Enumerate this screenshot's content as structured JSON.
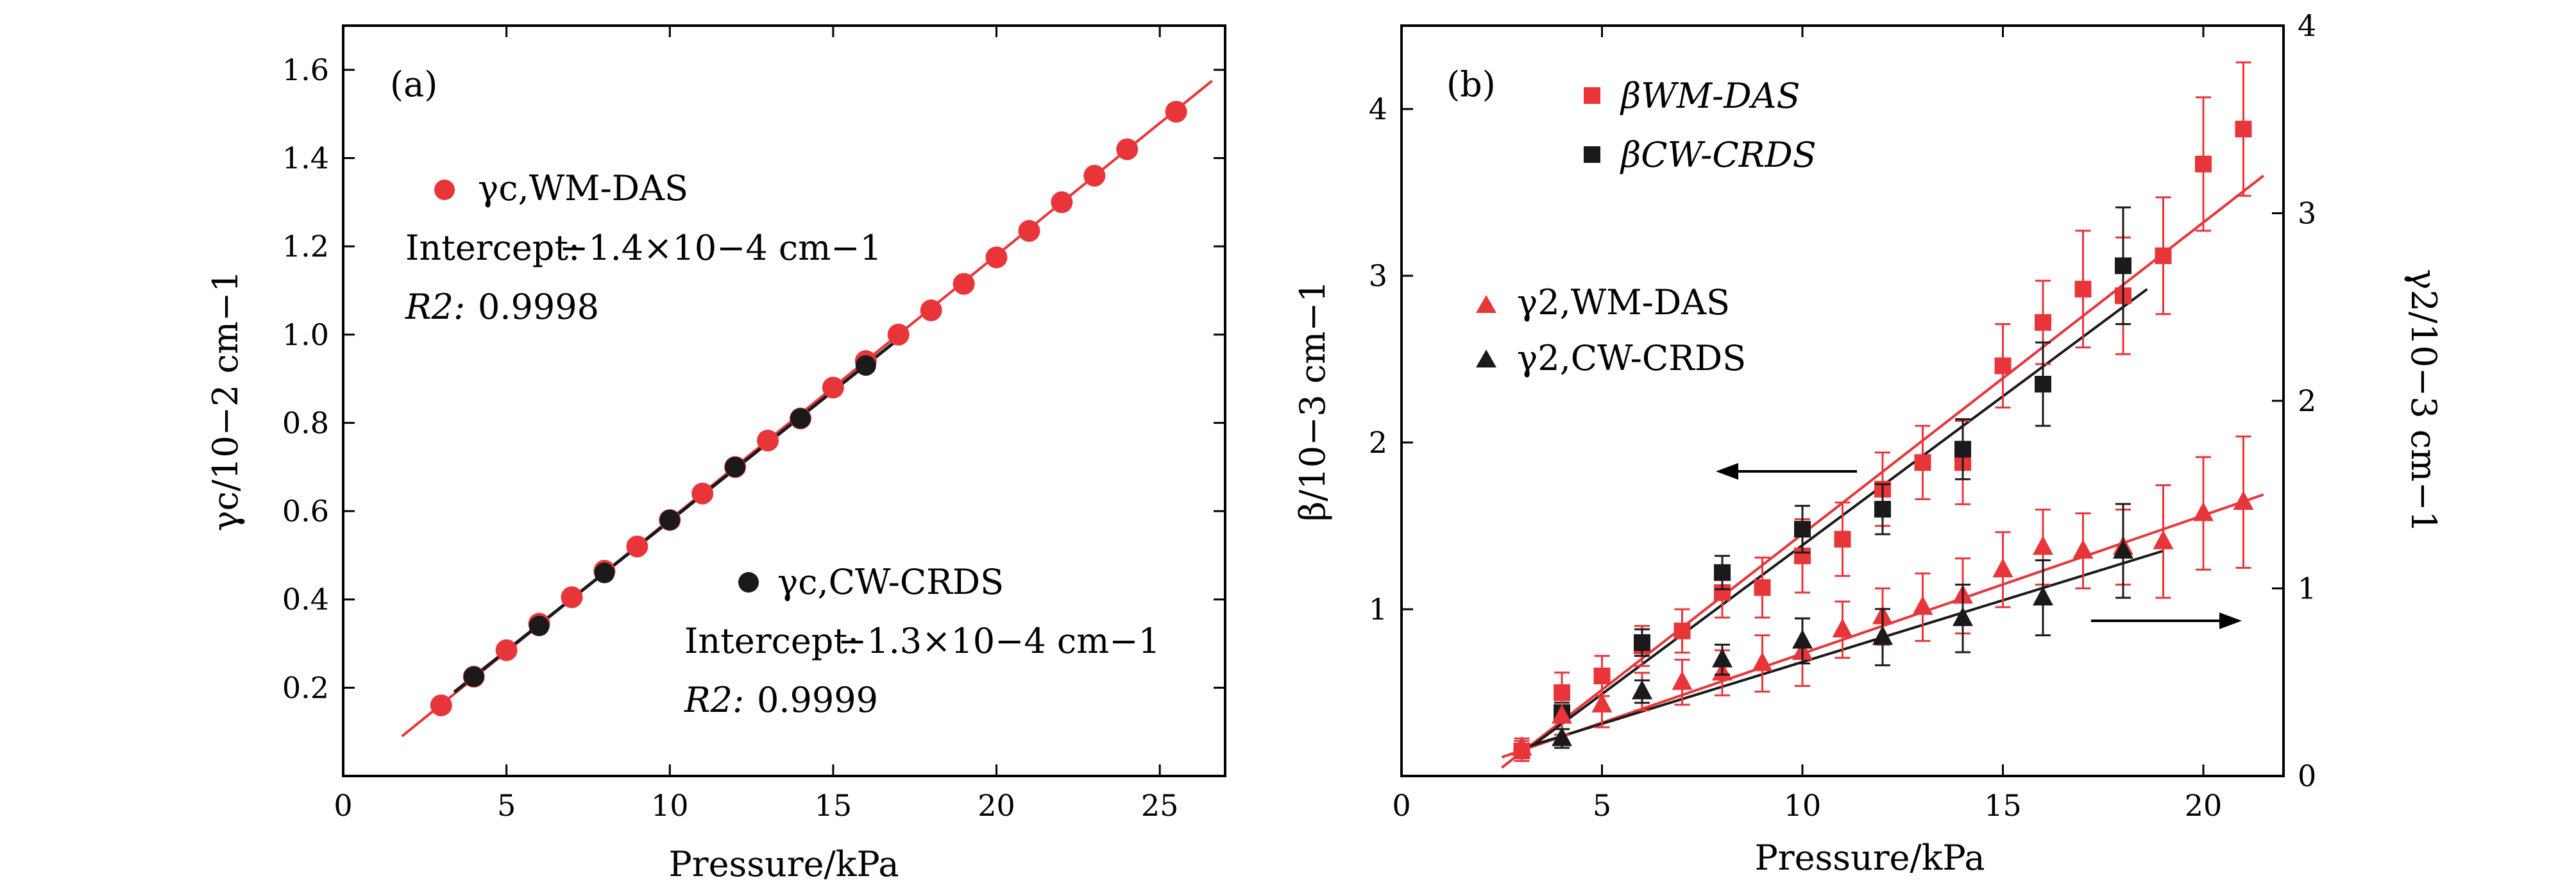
{
  "chart_data": [
    {
      "type": "scatter",
      "panel_label": "(a)",
      "xlabel": "Pressure/kPa",
      "ylabel": "γc/10−2 cm−1",
      "xlim": [
        0,
        27
      ],
      "ylim": [
        0,
        1.7
      ],
      "x_ticks": [
        "0",
        "5",
        "10",
        "15",
        "20",
        "25"
      ],
      "y_ticks": [
        "0.2",
        "0.4",
        "0.6",
        "0.8",
        "1.0",
        "1.2",
        "1.4",
        "1.6"
      ],
      "series": [
        {
          "name": "γc,WM-DAS",
          "color": "#e8353a",
          "x": [
            3,
            4,
            5,
            6,
            7,
            8,
            9,
            10,
            11,
            12,
            13,
            14,
            15,
            16,
            17,
            18,
            19,
            20,
            21,
            22,
            23,
            24,
            25.5
          ],
          "y": [
            0.16,
            0.225,
            0.285,
            0.345,
            0.405,
            0.465,
            0.52,
            0.58,
            0.64,
            0.7,
            0.76,
            0.81,
            0.88,
            0.94,
            1.0,
            1.055,
            1.115,
            1.175,
            1.235,
            1.3,
            1.36,
            1.42,
            1.505
          ],
          "fit": {
            "x": [
              1.8,
              26.6
            ],
            "y": [
              0.09,
              1.575
            ]
          }
        },
        {
          "name": "γc,CW-CRDS",
          "color": "#1a1a1a",
          "x": [
            4,
            6,
            8,
            10,
            12,
            14,
            16
          ],
          "y": [
            0.225,
            0.34,
            0.46,
            0.58,
            0.7,
            0.81,
            0.93
          ],
          "fit": {
            "x": [
              3.4,
              17
            ],
            "y": [
              0.19,
              0.99
            ]
          }
        }
      ],
      "annotations": [
        {
          "intercept_label": "Intercept:",
          "intercept_value": "−1.4×10−4 cm−1",
          "r2_label": "R2:",
          "r2_value": "0.9998"
        },
        {
          "intercept_label": "Intercept:",
          "intercept_value": "−1.3×10−4 cm−1",
          "r2_label": "R2:",
          "r2_value": "0.9999"
        }
      ]
    },
    {
      "type": "scatter",
      "panel_label": "(b)",
      "xlabel": "Pressure/kPa",
      "ylabel_left": "β/10−3 cm−1",
      "ylabel_right": "γ2/10−3 cm−1",
      "xlim": [
        0,
        22
      ],
      "ylim_left": [
        0,
        4.5
      ],
      "ylim_right": [
        0,
        4
      ],
      "x_ticks": [
        "0",
        "5",
        "10",
        "15",
        "20"
      ],
      "y_ticks_left": [
        "1",
        "2",
        "3",
        "4"
      ],
      "y_ticks_right": [
        "0",
        "1",
        "2",
        "3",
        "4"
      ],
      "series": [
        {
          "name": "βWM-DAS",
          "marker": "square",
          "axis": "left",
          "color": "#e8353a",
          "x": [
            3,
            4,
            5,
            6,
            7,
            8,
            9,
            10,
            11,
            12,
            13,
            14,
            15,
            16,
            17,
            18,
            19,
            20,
            21
          ],
          "y": [
            0.15,
            0.5,
            0.6,
            0.78,
            0.87,
            1.1,
            1.13,
            1.32,
            1.42,
            1.72,
            1.88,
            1.88,
            2.46,
            2.72,
            2.92,
            2.88,
            3.12,
            3.67,
            3.88
          ],
          "err": [
            0.06,
            0.12,
            0.12,
            0.12,
            0.13,
            0.15,
            0.18,
            0.22,
            0.22,
            0.22,
            0.22,
            0.25,
            0.25,
            0.25,
            0.35,
            0.35,
            0.35,
            0.4,
            0.4
          ],
          "fit": {
            "x": [
              2.5,
              21.5
            ],
            "y": [
              0.05,
              3.6
            ]
          }
        },
        {
          "name": "βCW-CRDS",
          "marker": "square",
          "axis": "left",
          "color": "#1a1a1a",
          "x": [
            4,
            6,
            8,
            10,
            12,
            14,
            16,
            18
          ],
          "y": [
            0.38,
            0.8,
            1.22,
            1.48,
            1.6,
            1.96,
            2.35,
            3.06
          ],
          "err": [
            0.06,
            0.08,
            0.1,
            0.14,
            0.15,
            0.18,
            0.25,
            0.35
          ],
          "fit": {
            "x": [
              3.2,
              18.6
            ],
            "y": [
              0.17,
              2.92
            ]
          }
        },
        {
          "name": "γ2,WM-DAS",
          "marker": "triangle",
          "axis": "right",
          "color": "#e8353a",
          "x": [
            3,
            4,
            5,
            6,
            7,
            8,
            9,
            10,
            11,
            12,
            13,
            14,
            15,
            16,
            17,
            18,
            19,
            20,
            21
          ],
          "y": [
            0.15,
            0.32,
            0.38,
            0.45,
            0.5,
            0.55,
            0.6,
            0.66,
            0.78,
            0.85,
            0.9,
            0.96,
            1.1,
            1.22,
            1.2,
            1.22,
            1.25,
            1.4,
            1.46
          ],
          "err": [
            0.05,
            0.1,
            0.12,
            0.1,
            0.12,
            0.12,
            0.15,
            0.18,
            0.15,
            0.15,
            0.18,
            0.2,
            0.2,
            0.2,
            0.2,
            0.2,
            0.3,
            0.3,
            0.35
          ],
          "fit": {
            "x": [
              2.5,
              21.5
            ],
            "y": [
              0.1,
              1.5
            ]
          }
        },
        {
          "name": "γ2,CW-CRDS",
          "marker": "triangle",
          "axis": "right",
          "color": "#1a1a1a",
          "x": [
            4,
            6,
            8,
            10,
            12,
            14,
            16,
            18
          ],
          "y": [
            0.2,
            0.45,
            0.62,
            0.72,
            0.74,
            0.84,
            0.95,
            1.2
          ],
          "err": [
            0.05,
            0.06,
            0.08,
            0.12,
            0.15,
            0.18,
            0.2,
            0.25
          ],
          "fit": {
            "x": [
              3.2,
              19
            ],
            "y": [
              0.16,
              1.2
            ]
          }
        }
      ]
    }
  ]
}
